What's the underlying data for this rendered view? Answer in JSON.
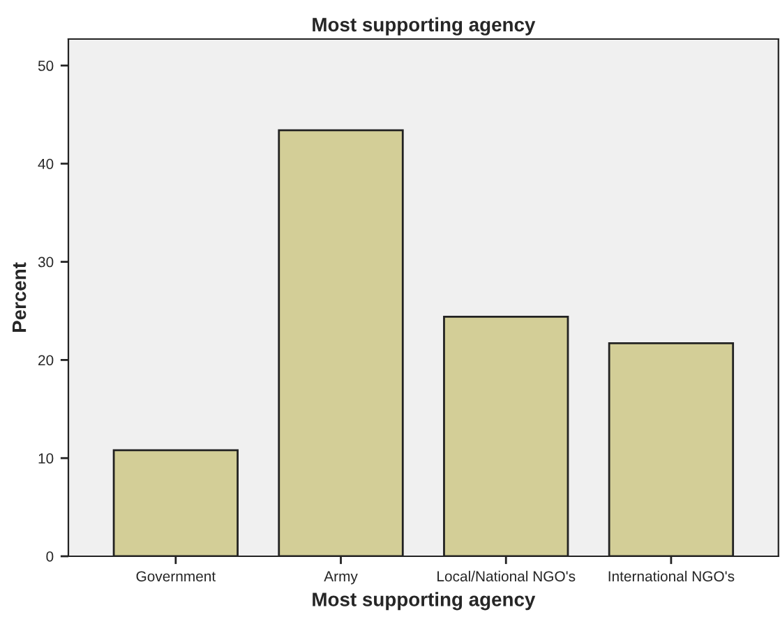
{
  "chart_data": {
    "type": "bar",
    "title": "Most supporting agency",
    "xlabel": "Most supporting agency",
    "ylabel": "Percent",
    "categories": [
      "Government",
      "Army",
      "Local/National NGO's",
      "International NGO's"
    ],
    "values": [
      10.8,
      43.4,
      24.4,
      21.7
    ],
    "color": "#d3ce97",
    "ylim": [
      0,
      52.7
    ],
    "yticks": [
      0,
      10,
      20,
      30,
      40,
      50
    ],
    "grid": false
  }
}
